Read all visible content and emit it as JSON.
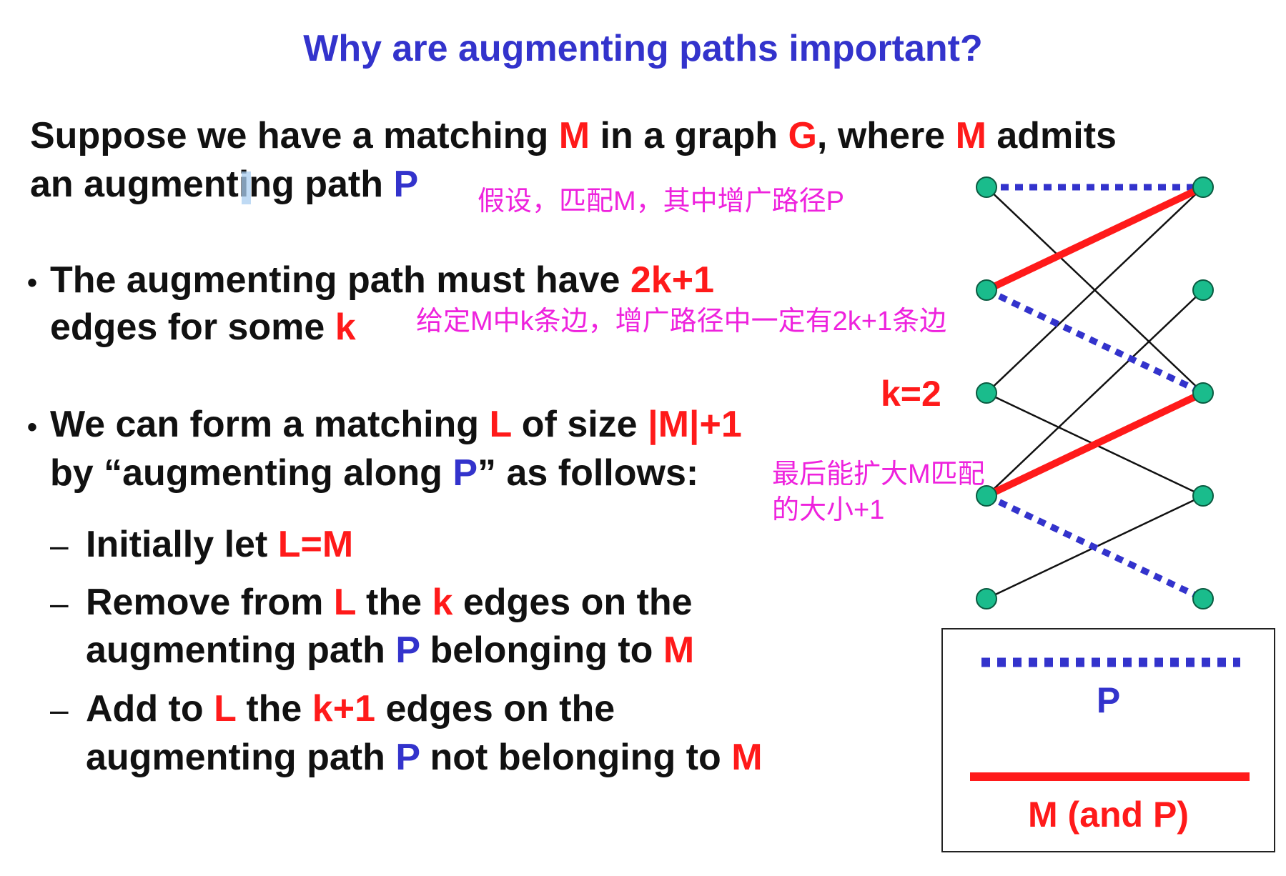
{
  "title": "Why are augmenting paths important?",
  "intro": {
    "l1_a": "Suppose we have a matching ",
    "l1_M": "M",
    "l1_b": " in a graph ",
    "l1_G": "G",
    "l1_c": ", where ",
    "l1_M2": "M",
    "l1_d": " admits",
    "l2_a": "an augmenting path ",
    "l2_P": "P",
    "note": "假设，匹配M，其中增广路径P"
  },
  "bullet1": {
    "mark": "•",
    "l1_a": "The augmenting path must have ",
    "l1_v": "2k+1",
    "l2_a": "edges for some ",
    "l2_k": "k",
    "note": "给定M中k条边，增广路径中一定有2k+1条边"
  },
  "bullet2": {
    "mark": "•",
    "l1_a": "We can form a matching ",
    "l1_L": "L",
    "l1_b": " of size ",
    "l1_v": "|M|+1",
    "l2_a": "by “augmenting along ",
    "l2_P": "P",
    "l2_b": "” as follows:",
    "note1": "最后能扩大M匹配",
    "note2": "的大小+1"
  },
  "steps": {
    "dash": "–",
    "s1_a": "Initially let ",
    "s1_v": "L=M",
    "s2_a": "Remove from ",
    "s2_L": "L",
    "s2_b": " the ",
    "s2_k": "k",
    "s2_c": " edges on the",
    "s2_d": "augmenting path ",
    "s2_P": "P",
    "s2_e": " belonging to ",
    "s2_M": "M",
    "s3_a": "Add to ",
    "s3_L": "L",
    "s3_b": " the ",
    "s3_v": "k+1",
    "s3_c": " edges on the",
    "s3_d": "augmenting path ",
    "s3_P": "P",
    "s3_e": " not belonging to ",
    "s3_M": "M"
  },
  "graph": {
    "k_label": "k=2",
    "left_nodes": 5,
    "right_nodes": 5,
    "thin_edges": [
      [
        1,
        3
      ],
      [
        3,
        1
      ],
      [
        3,
        4
      ],
      [
        4,
        2
      ],
      [
        5,
        4
      ]
    ],
    "matching_edges": [
      [
        2,
        1
      ],
      [
        4,
        3
      ]
    ],
    "path_only_edges": [
      [
        1,
        1
      ],
      [
        2,
        3
      ],
      [
        4,
        5
      ]
    ],
    "colors": {
      "node": "#1abc8c",
      "thin": "#111111",
      "matching": "#ff1a1a",
      "path": "#3333cc"
    }
  },
  "legend": {
    "p_label": "P",
    "m_label": "M (and P)"
  }
}
